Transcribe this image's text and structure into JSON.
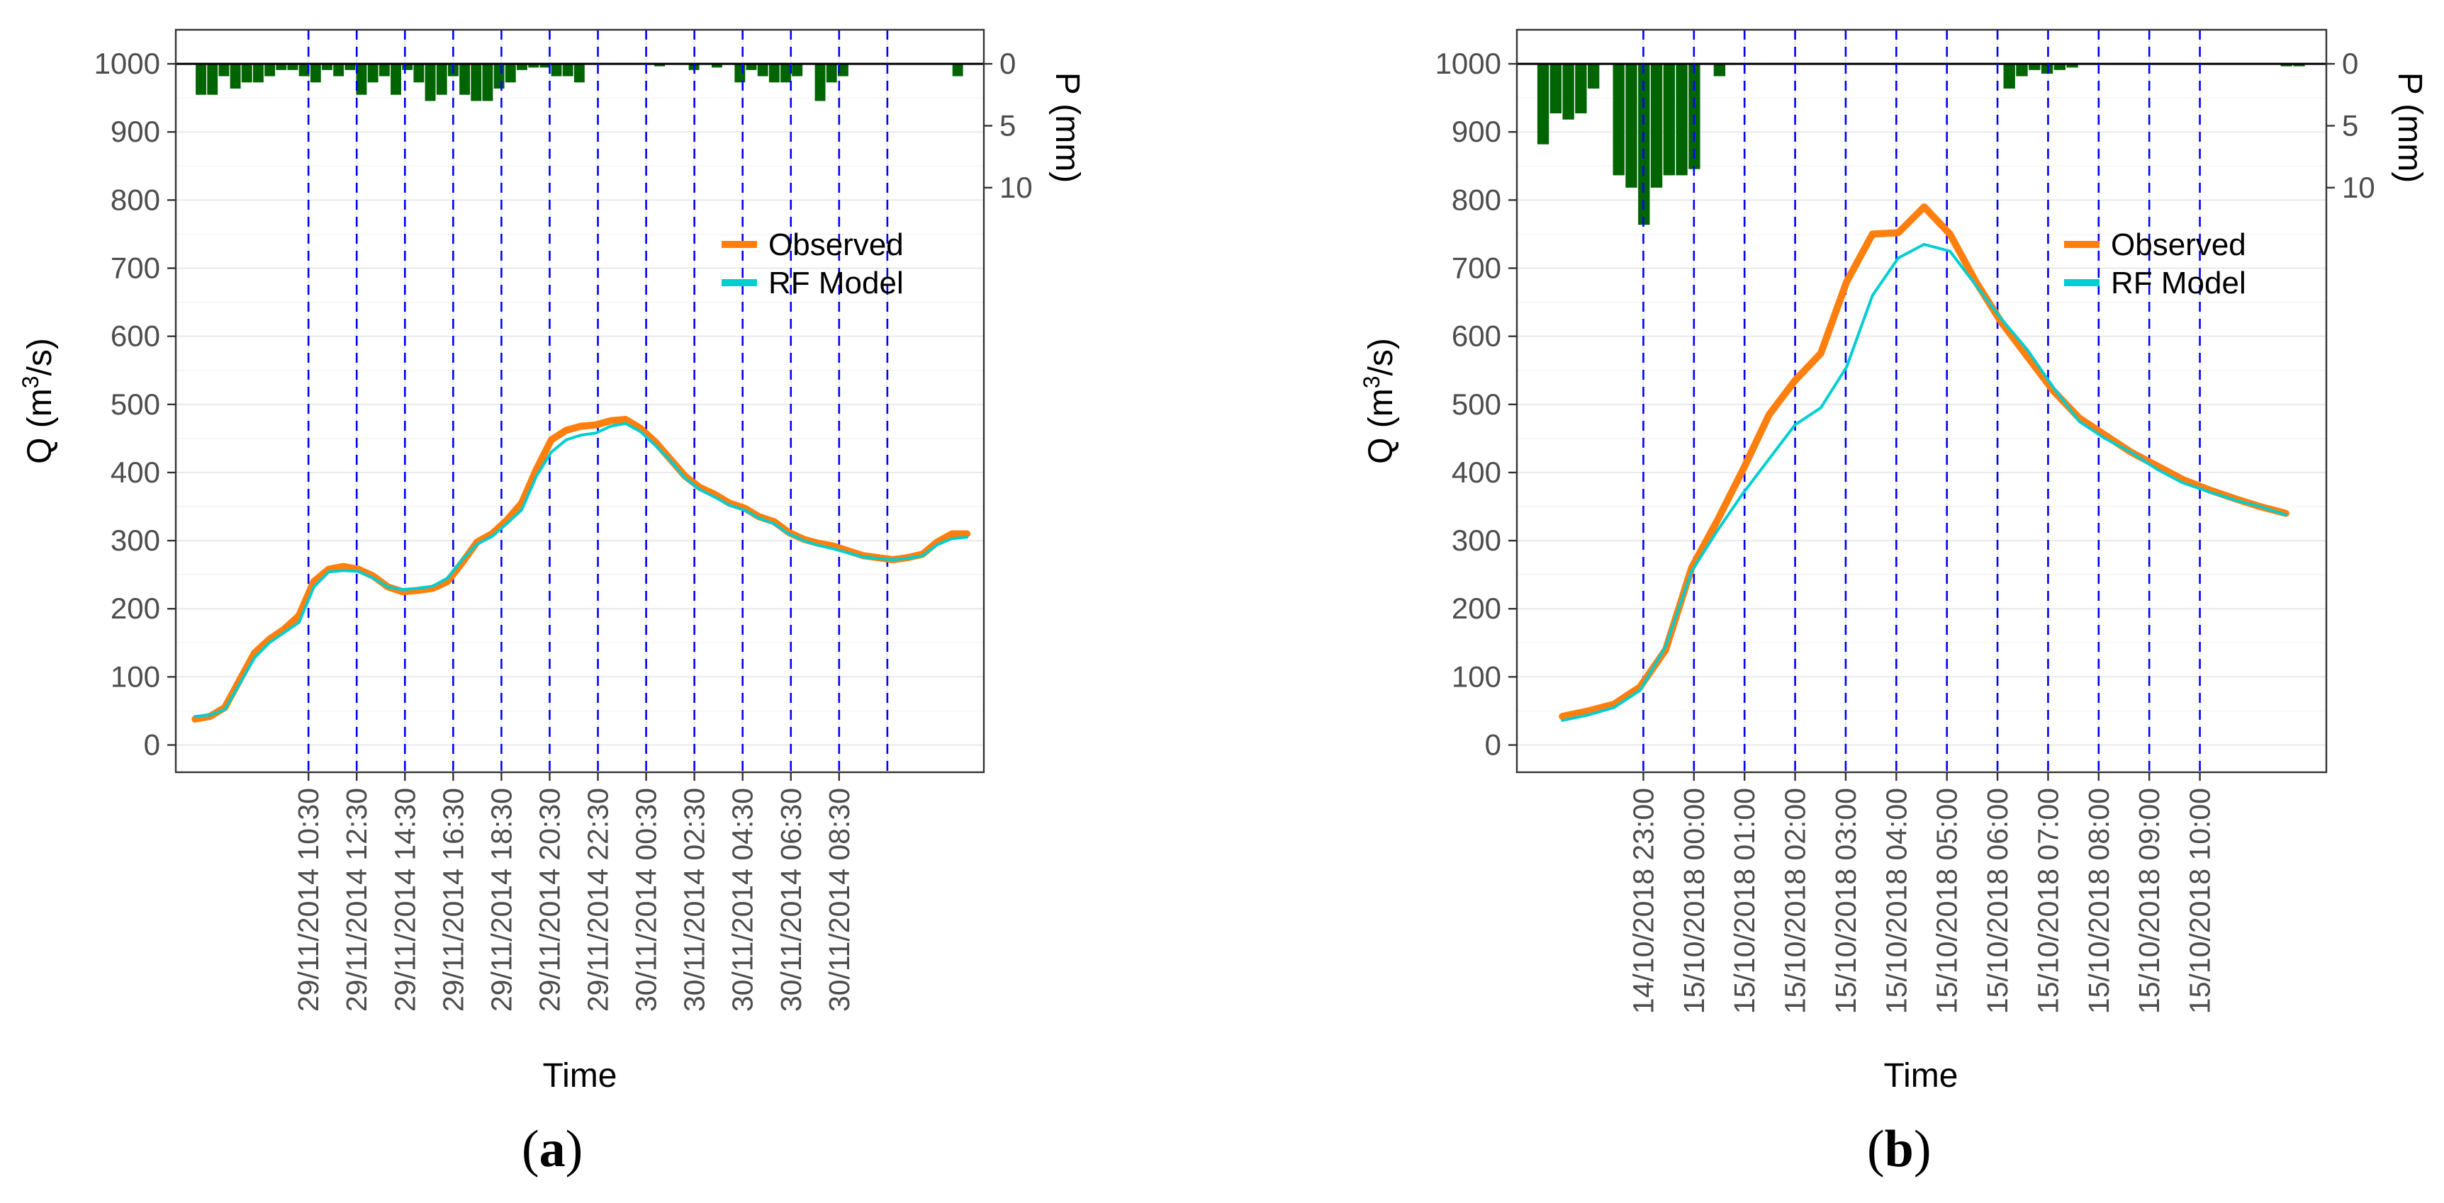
{
  "colors": {
    "observed": "#ff7f0e",
    "model": "#00ced1",
    "rain": "#006400",
    "vline": "#0000ff",
    "grid": "#ebebeb",
    "text": "#4d4d4d"
  },
  "panel_labels": [
    {
      "open": "(",
      "letter": "a",
      "close": ")"
    },
    {
      "open": "(",
      "letter": "b",
      "close": ")"
    }
  ],
  "chart_data": [
    {
      "type": "line",
      "title": "",
      "xlabel": "Time",
      "ylabel": "Q (m3/s)",
      "ylabel_parts": {
        "pre": "Q (m",
        "sup": "3",
        "post": "/s)"
      },
      "y2label": "P (mm)",
      "ylim": [
        -40,
        1050
      ],
      "yticks": [
        0,
        100,
        200,
        300,
        400,
        500,
        600,
        700,
        800,
        900,
        1000
      ],
      "y2ticks": [
        0,
        5,
        10
      ],
      "x_index_range": [
        -2,
        31.5
      ],
      "vlines_index": [
        3.5,
        5.5,
        7.5,
        9.5,
        11.5,
        13.5,
        15.5,
        17.5,
        19.5,
        21.5,
        23.5,
        25.5,
        27.5
      ],
      "xtick_labels": [
        "29/11/2014 10:30",
        "29/11/2014 12:30",
        "29/11/2014 14:30",
        "29/11/2014 16:30",
        "29/11/2014 18:30",
        "29/11/2014 20:30",
        "29/11/2014 22:30",
        "30/11/2014 00:30",
        "30/11/2014 02:30",
        "30/11/2014 04:30",
        "30/11/2014 06:30",
        "30/11/2014 08:30"
      ],
      "legend": [
        "Observed",
        "RF Model"
      ],
      "legend_position": "top-right",
      "grid": true,
      "series": [
        {
          "name": "Observed",
          "values": [
            38,
            42,
            55,
            95,
            135,
            155,
            170,
            190,
            240,
            258,
            262,
            258,
            248,
            232,
            225,
            227,
            230,
            240,
            268,
            298,
            310,
            330,
            355,
            405,
            448,
            462,
            468,
            470,
            476,
            478,
            465,
            445,
            420,
            395,
            378,
            368,
            355,
            348,
            335,
            328,
            312,
            302,
            296,
            292,
            285,
            278,
            275,
            272,
            275,
            280,
            298,
            310,
            310
          ]
        },
        {
          "name": "RF Model",
          "values": [
            42,
            44,
            52,
            90,
            128,
            150,
            165,
            180,
            232,
            254,
            256,
            255,
            245,
            232,
            228,
            230,
            233,
            245,
            272,
            295,
            306,
            325,
            345,
            395,
            430,
            448,
            455,
            458,
            468,
            472,
            460,
            440,
            418,
            392,
            375,
            364,
            352,
            345,
            333,
            325,
            310,
            300,
            293,
            288,
            282,
            276,
            274,
            272,
            274,
            278,
            294,
            303,
            305
          ]
        }
      ],
      "rain_mm": [
        2.5,
        2.5,
        1,
        2,
        1.5,
        1.5,
        1,
        0.5,
        0.5,
        1,
        1.5,
        0.5,
        1,
        0.5,
        2.5,
        1.5,
        1,
        2.5,
        0.5,
        1.5,
        3,
        2.5,
        1,
        2.5,
        3,
        3,
        2,
        1.5,
        0.5,
        0.3,
        0.3,
        1,
        1,
        1.5,
        0,
        0,
        0,
        0,
        0,
        0,
        0.2,
        0,
        0,
        0.5,
        0,
        0.3,
        0,
        1.5,
        0.5,
        1,
        1.5,
        1.5,
        1,
        0,
        3,
        1.5,
        1,
        0,
        0,
        0,
        0,
        0,
        0,
        0,
        0,
        0,
        1
      ]
    },
    {
      "type": "line",
      "title": "",
      "xlabel": "Time",
      "ylabel": "Q (m3/s)",
      "ylabel_parts": {
        "pre": "Q (m",
        "sup": "3",
        "post": "/s)"
      },
      "y2label": "P (mm)",
      "ylim": [
        -40,
        1050
      ],
      "yticks": [
        0,
        100,
        200,
        300,
        400,
        500,
        600,
        700,
        800,
        900,
        1000
      ],
      "y2ticks": [
        0,
        5,
        10
      ],
      "x_index_range": [
        -1,
        15
      ],
      "vlines_index": [
        1.5,
        2.5,
        3.5,
        4.5,
        5.5,
        6.5,
        7.5,
        8.5,
        9.5,
        10.5,
        11.5,
        12.5
      ],
      "xtick_labels": [
        "14/10/2018 23:00",
        "15/10/2018 00:00",
        "15/10/2018 01:00",
        "15/10/2018 02:00",
        "15/10/2018 03:00",
        "15/10/2018 04:00",
        "15/10/2018 05:00",
        "15/10/2018 06:00",
        "15/10/2018 07:00",
        "15/10/2018 08:00",
        "15/10/2018 09:00",
        "15/10/2018 10:00"
      ],
      "legend": [
        "Observed",
        "RF Model"
      ],
      "legend_position": "top-right",
      "grid": true,
      "series": [
        {
          "name": "Observed",
          "values": [
            42,
            50,
            60,
            85,
            140,
            260,
            330,
            405,
            485,
            535,
            575,
            680,
            750,
            752,
            790,
            750,
            680,
            620,
            570,
            520,
            480,
            455,
            430,
            410,
            390,
            375,
            362,
            350,
            340
          ]
        },
        {
          "name": "RF Model",
          "values": [
            36,
            44,
            55,
            80,
            145,
            255,
            315,
            370,
            420,
            470,
            495,
            555,
            660,
            715,
            735,
            725,
            675,
            625,
            580,
            525,
            475,
            450,
            430,
            405,
            385,
            372,
            360,
            350,
            338
          ]
        }
      ],
      "rain_mm": [
        6.5,
        4,
        4.5,
        4,
        2,
        0,
        9,
        10,
        13,
        10,
        9,
        9,
        8.5,
        0,
        1,
        0,
        0,
        0,
        0,
        0,
        0,
        0,
        0,
        0,
        0,
        0,
        0,
        0,
        0,
        0,
        0,
        0,
        0,
        0,
        0,
        0,
        0,
        2,
        1,
        0.5,
        0.8,
        0.5,
        0.3,
        0,
        0,
        0,
        0,
        0,
        0,
        0,
        0,
        0,
        0,
        0,
        0,
        0,
        0,
        0,
        0,
        0.2,
        0.2
      ]
    }
  ]
}
